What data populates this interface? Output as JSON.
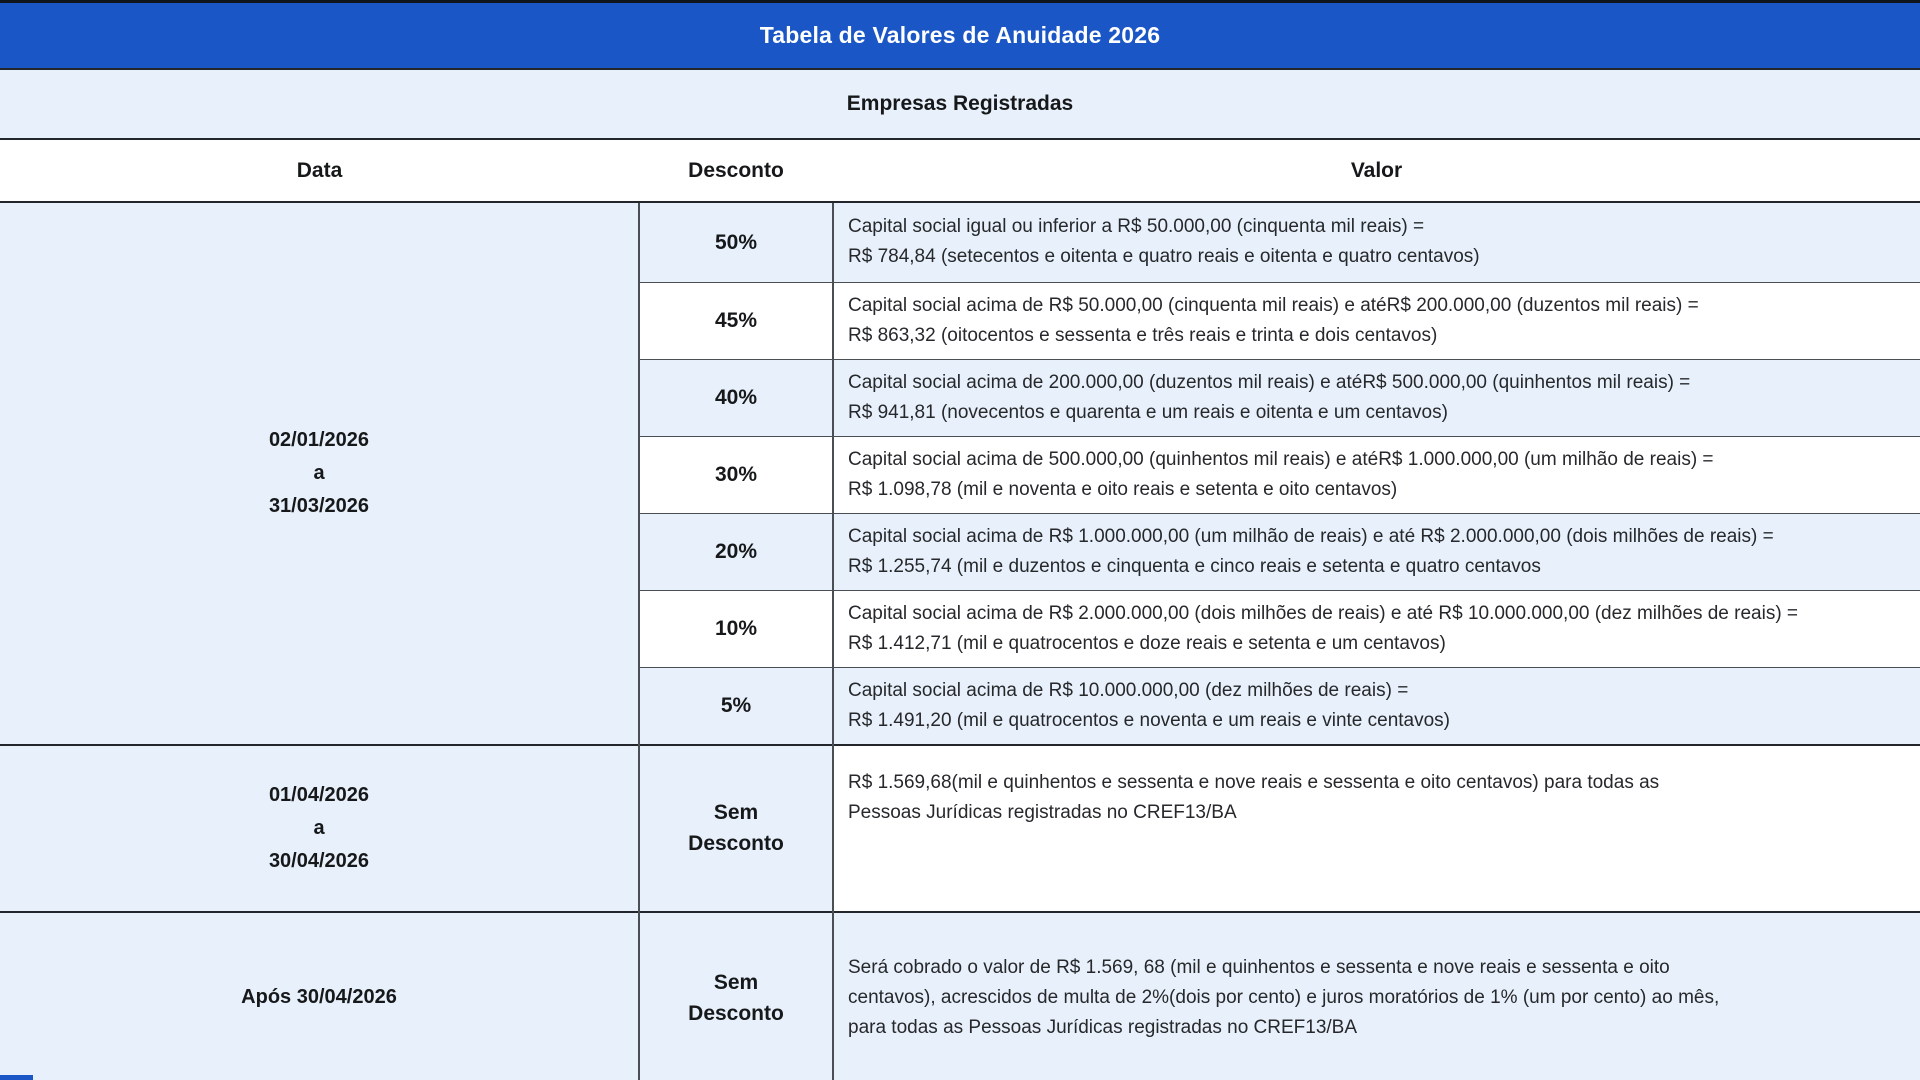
{
  "title": "Tabela de Valores de Anuidade 2026",
  "subtitle": "Empresas Registradas",
  "columns": [
    "Data",
    "Desconto",
    "Valor"
  ],
  "colors": {
    "header_bg": "#1a56c6",
    "header_text": "#ffffff",
    "band_bg": "#e8f1fb",
    "row_tint": "#e8f1fb",
    "row_plain": "#ffffff",
    "border_dark": "#23272b",
    "border_gray": "#4a4f54",
    "text_dark": "#16181a",
    "text_body": "#26282b"
  },
  "groups": [
    {
      "dates": [
        "02/01/2026",
        "a",
        "31/03/2026"
      ],
      "rows": [
        {
          "discount": [
            "50%"
          ],
          "value": [
            "Capital social igual ou inferior a R$ 50.000,00 (cinquenta mil reais) =",
            "R$ 784,84 (setecentos e oitenta e quatro reais e oitenta e quatro centavos)"
          ]
        },
        {
          "discount": [
            "45%"
          ],
          "value": [
            "Capital social acima de R$ 50.000,00 (cinquenta mil reais) e atéR$ 200.000,00 (duzentos mil reais) =",
            "R$ 863,32 (oitocentos e sessenta e três reais e trinta e dois centavos)"
          ]
        },
        {
          "discount": [
            "40%"
          ],
          "value": [
            "Capital social acima de 200.000,00 (duzentos mil reais) e atéR$ 500.000,00 (quinhentos mil reais) =",
            "R$ 941,81 (novecentos e quarenta e um reais e oitenta e um centavos)"
          ]
        },
        {
          "discount": [
            "30%"
          ],
          "value": [
            "Capital social acima de 500.000,00 (quinhentos mil reais) e atéR$ 1.000.000,00 (um milhão de reais) =",
            "R$ 1.098,78 (mil e noventa e oito reais e setenta e oito centavos)"
          ]
        },
        {
          "discount": [
            "20%"
          ],
          "value": [
            "Capital social acima de R$ 1.000.000,00 (um milhão de reais) e até R$ 2.000.000,00 (dois milhões de reais) =",
            "R$ 1.255,74 (mil e duzentos e cinquenta e cinco reais e setenta e quatro centavos"
          ]
        },
        {
          "discount": [
            "10%"
          ],
          "value": [
            "Capital social acima de R$ 2.000.000,00 (dois milhões de reais) e até R$ 10.000.000,00 (dez milhões de reais) =",
            "R$ 1.412,71 (mil e quatrocentos e doze reais e setenta e um centavos)"
          ]
        },
        {
          "discount": [
            "5%"
          ],
          "value": [
            "Capital social acima de R$ 10.000.000,00 (dez milhões de reais) =",
            "R$ 1.491,20 (mil e quatrocentos e noventa e um reais e vinte centavos)"
          ]
        }
      ]
    },
    {
      "dates": [
        "01/04/2026",
        "a",
        "30/04/2026"
      ],
      "rows": [
        {
          "discount": [
            "Sem",
            "Desconto"
          ],
          "value": [
            "R$ 1.569,68(mil e quinhentos e sessenta e nove reais e sessenta e oito centavos) para todas as",
            "Pessoas Jurídicas registradas no CREF13/BA"
          ]
        }
      ]
    },
    {
      "dates": [
        "Após 30/04/2026"
      ],
      "rows": [
        {
          "discount": [
            "Sem",
            "Desconto"
          ],
          "value": [
            "Será cobrado o valor de R$ 1.569, 68 (mil e quinhentos e sessenta e nove reais e sessenta e oito",
            "centavos), acrescidos de multa de 2%(dois por cento) e juros moratórios de 1% (um por cento) ao mês,",
            "para todas as Pessoas Jurídicas registradas no CREF13/BA"
          ]
        }
      ]
    }
  ]
}
